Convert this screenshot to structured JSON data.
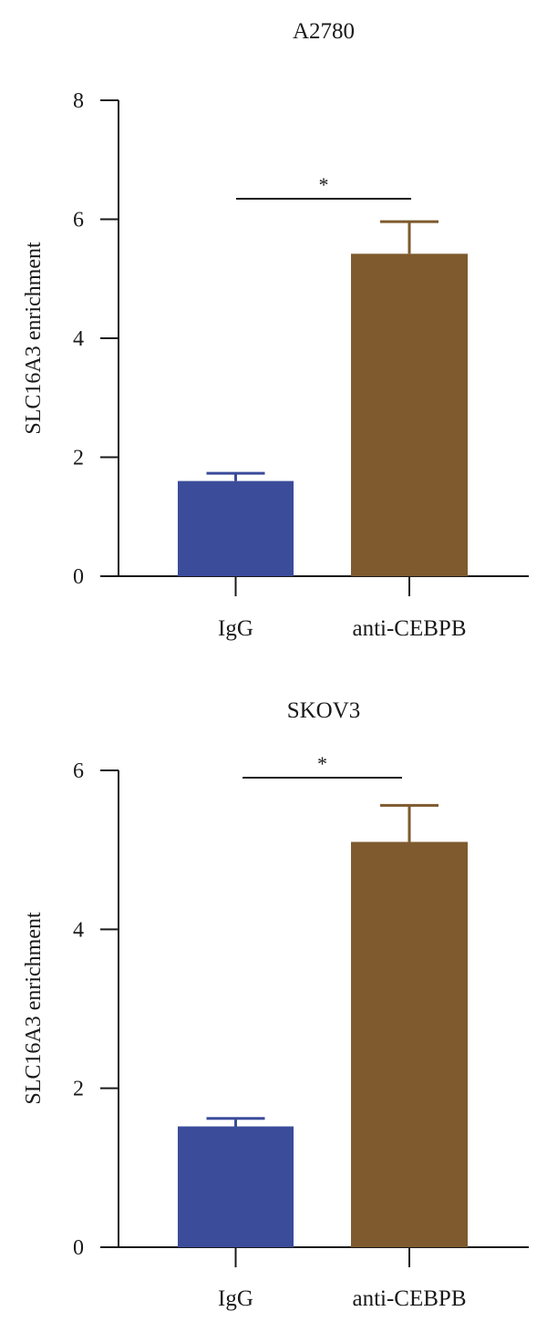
{
  "chart_data": [
    {
      "type": "bar",
      "title": "A2780",
      "xlabel": "",
      "ylabel": "SLC16A3 enrichment",
      "categories": [
        "IgG",
        "anti-CEBPB"
      ],
      "values": [
        1.6,
        5.42
      ],
      "errors": [
        0.13,
        0.54
      ],
      "ylim": [
        0,
        8
      ],
      "yticks": [
        "0",
        "2",
        "4",
        "6",
        "8"
      ],
      "significance": {
        "between": [
          "IgG",
          "anti-CEBPB"
        ],
        "label": "*"
      },
      "grid": false,
      "colors": [
        "#3b4c9a",
        "#7e5a2e"
      ]
    },
    {
      "type": "bar",
      "title": "SKOV3",
      "xlabel": "",
      "ylabel": "SLC16A3 enrichment",
      "categories": [
        "IgG",
        "anti-CEBPB"
      ],
      "values": [
        1.52,
        5.1
      ],
      "errors": [
        0.1,
        0.46
      ],
      "ylim": [
        0,
        6
      ],
      "yticks": [
        "0",
        "2",
        "4",
        "6"
      ],
      "significance": {
        "between": [
          "IgG",
          "anti-CEBPB"
        ],
        "label": "*"
      },
      "grid": false,
      "colors": [
        "#3b4c9a",
        "#7e5a2e"
      ]
    }
  ]
}
